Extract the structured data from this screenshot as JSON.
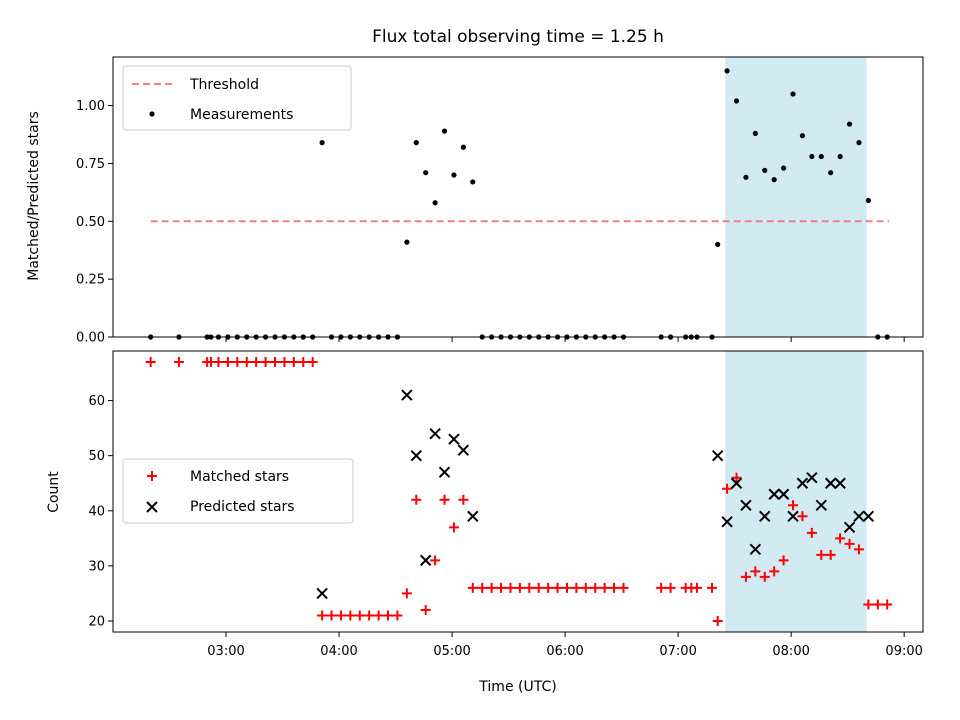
{
  "chart_data": [
    {
      "type": "scatter",
      "title": "Flux total observing time = 1.25 h",
      "xlabel": "",
      "ylabel": "Matched/Predicted stars",
      "xlim": [
        "02:00",
        "09:10"
      ],
      "ylim": [
        0.0,
        1.21
      ],
      "yticks": [
        0.0,
        0.25,
        0.5,
        0.75,
        1.0
      ],
      "ytick_labels": [
        "0.00",
        "0.25",
        "0.50",
        "0.75",
        "1.00"
      ],
      "highlight_band": {
        "x_start": "07:25",
        "x_end": "08:40",
        "color": "#add8e6"
      },
      "threshold": {
        "name": "Threshold",
        "y": 0.5,
        "x_start": "02:20",
        "x_end": "08:52",
        "color": "#f08080",
        "style": "dashed"
      },
      "legend": {
        "position": "upper-left",
        "entries": [
          "Threshold",
          "Measurements"
        ]
      },
      "series": [
        {
          "name": "Measurements",
          "color": "#000000",
          "marker": "dot",
          "points": [
            [
              "02:20",
              0
            ],
            [
              "02:35",
              0
            ],
            [
              "02:50",
              0
            ],
            [
              "02:52",
              0
            ],
            [
              "02:56",
              0
            ],
            [
              "03:01",
              0
            ],
            [
              "03:06",
              0
            ],
            [
              "03:11",
              0
            ],
            [
              "03:16",
              0
            ],
            [
              "03:21",
              0
            ],
            [
              "03:26",
              0
            ],
            [
              "03:31",
              0
            ],
            [
              "03:36",
              0
            ],
            [
              "03:41",
              0
            ],
            [
              "03:46",
              0
            ],
            [
              "03:51",
              0.84
            ],
            [
              "03:56",
              0
            ],
            [
              "04:01",
              0
            ],
            [
              "04:06",
              0
            ],
            [
              "04:11",
              0
            ],
            [
              "04:16",
              0
            ],
            [
              "04:21",
              0
            ],
            [
              "04:26",
              0
            ],
            [
              "04:31",
              0
            ],
            [
              "04:36",
              0.41
            ],
            [
              "04:41",
              0.84
            ],
            [
              "04:46",
              0.71
            ],
            [
              "04:51",
              0.58
            ],
            [
              "04:56",
              0.89
            ],
            [
              "05:01",
              0.7
            ],
            [
              "05:06",
              0.82
            ],
            [
              "05:11",
              0.67
            ],
            [
              "05:16",
              0
            ],
            [
              "05:21",
              0
            ],
            [
              "05:26",
              0
            ],
            [
              "05:31",
              0
            ],
            [
              "05:36",
              0
            ],
            [
              "05:41",
              0
            ],
            [
              "05:46",
              0
            ],
            [
              "05:51",
              0
            ],
            [
              "05:56",
              0
            ],
            [
              "06:01",
              0
            ],
            [
              "06:06",
              0
            ],
            [
              "06:11",
              0
            ],
            [
              "06:16",
              0
            ],
            [
              "06:21",
              0
            ],
            [
              "06:26",
              0
            ],
            [
              "06:31",
              0
            ],
            [
              "06:51",
              0
            ],
            [
              "06:56",
              0
            ],
            [
              "07:04",
              0
            ],
            [
              "07:07",
              0
            ],
            [
              "07:10",
              0
            ],
            [
              "07:18",
              0
            ],
            [
              "07:21",
              0.4
            ],
            [
              "07:26",
              1.15
            ],
            [
              "07:31",
              1.02
            ],
            [
              "07:36",
              0.69
            ],
            [
              "07:41",
              0.88
            ],
            [
              "07:46",
              0.72
            ],
            [
              "07:51",
              0.68
            ],
            [
              "07:56",
              0.73
            ],
            [
              "08:01",
              1.05
            ],
            [
              "08:06",
              0.87
            ],
            [
              "08:11",
              0.78
            ],
            [
              "08:16",
              0.78
            ],
            [
              "08:21",
              0.71
            ],
            [
              "08:26",
              0.78
            ],
            [
              "08:31",
              0.92
            ],
            [
              "08:36",
              0.84
            ],
            [
              "08:41",
              0.59
            ],
            [
              "08:46",
              0
            ],
            [
              "08:51",
              0
            ]
          ]
        }
      ]
    },
    {
      "type": "scatter",
      "title": "",
      "xlabel": "Time (UTC)",
      "ylabel": "Count",
      "xlim": [
        "02:00",
        "09:10"
      ],
      "ylim": [
        18,
        69
      ],
      "yticks": [
        20,
        30,
        40,
        50,
        60
      ],
      "xticks": [
        "03:00",
        "04:00",
        "05:00",
        "06:00",
        "07:00",
        "08:00",
        "09:00"
      ],
      "highlight_band": {
        "x_start": "07:25",
        "x_end": "08:40",
        "color": "#add8e6"
      },
      "legend": {
        "position": "center-left",
        "entries": [
          "Matched stars",
          "Predicted stars"
        ]
      },
      "series": [
        {
          "name": "Matched stars",
          "color": "#ff0000",
          "marker": "plus",
          "points": [
            [
              "02:20",
              67
            ],
            [
              "02:35",
              67
            ],
            [
              "02:50",
              67
            ],
            [
              "02:52",
              67
            ],
            [
              "02:56",
              67
            ],
            [
              "03:01",
              67
            ],
            [
              "03:06",
              67
            ],
            [
              "03:11",
              67
            ],
            [
              "03:16",
              67
            ],
            [
              "03:21",
              67
            ],
            [
              "03:26",
              67
            ],
            [
              "03:31",
              67
            ],
            [
              "03:36",
              67
            ],
            [
              "03:41",
              67
            ],
            [
              "03:46",
              67
            ],
            [
              "03:51",
              21
            ],
            [
              "03:56",
              21
            ],
            [
              "04:01",
              21
            ],
            [
              "04:06",
              21
            ],
            [
              "04:11",
              21
            ],
            [
              "04:16",
              21
            ],
            [
              "04:21",
              21
            ],
            [
              "04:26",
              21
            ],
            [
              "04:31",
              21
            ],
            [
              "04:36",
              25
            ],
            [
              "04:41",
              42
            ],
            [
              "04:46",
              22
            ],
            [
              "04:51",
              31
            ],
            [
              "04:56",
              42
            ],
            [
              "05:01",
              37
            ],
            [
              "05:06",
              42
            ],
            [
              "05:11",
              26
            ],
            [
              "05:16",
              26
            ],
            [
              "05:21",
              26
            ],
            [
              "05:26",
              26
            ],
            [
              "05:31",
              26
            ],
            [
              "05:36",
              26
            ],
            [
              "05:41",
              26
            ],
            [
              "05:46",
              26
            ],
            [
              "05:51",
              26
            ],
            [
              "05:56",
              26
            ],
            [
              "06:01",
              26
            ],
            [
              "06:06",
              26
            ],
            [
              "06:11",
              26
            ],
            [
              "06:16",
              26
            ],
            [
              "06:21",
              26
            ],
            [
              "06:26",
              26
            ],
            [
              "06:31",
              26
            ],
            [
              "06:51",
              26
            ],
            [
              "06:56",
              26
            ],
            [
              "07:04",
              26
            ],
            [
              "07:07",
              26
            ],
            [
              "07:10",
              26
            ],
            [
              "07:18",
              26
            ],
            [
              "07:21",
              20
            ],
            [
              "07:26",
              44
            ],
            [
              "07:31",
              46
            ],
            [
              "07:36",
              28
            ],
            [
              "07:41",
              29
            ],
            [
              "07:46",
              28
            ],
            [
              "07:51",
              29
            ],
            [
              "07:56",
              31
            ],
            [
              "08:01",
              41
            ],
            [
              "08:06",
              39
            ],
            [
              "08:11",
              36
            ],
            [
              "08:16",
              32
            ],
            [
              "08:21",
              32
            ],
            [
              "08:26",
              35
            ],
            [
              "08:31",
              34
            ],
            [
              "08:36",
              33
            ],
            [
              "08:41",
              23
            ],
            [
              "08:46",
              23
            ],
            [
              "08:51",
              23
            ]
          ]
        },
        {
          "name": "Predicted stars",
          "color": "#000000",
          "marker": "x",
          "points": [
            [
              "03:51",
              25
            ],
            [
              "04:36",
              61
            ],
            [
              "04:41",
              50
            ],
            [
              "04:46",
              31
            ],
            [
              "04:51",
              54
            ],
            [
              "04:56",
              47
            ],
            [
              "05:01",
              53
            ],
            [
              "05:06",
              51
            ],
            [
              "05:11",
              39
            ],
            [
              "07:21",
              50
            ],
            [
              "07:26",
              38
            ],
            [
              "07:31",
              45
            ],
            [
              "07:36",
              41
            ],
            [
              "07:41",
              33
            ],
            [
              "07:46",
              39
            ],
            [
              "07:51",
              43
            ],
            [
              "07:56",
              43
            ],
            [
              "08:01",
              39
            ],
            [
              "08:06",
              45
            ],
            [
              "08:11",
              46
            ],
            [
              "08:16",
              41
            ],
            [
              "08:21",
              45
            ],
            [
              "08:26",
              45
            ],
            [
              "08:31",
              37
            ],
            [
              "08:36",
              39
            ],
            [
              "08:41",
              39
            ]
          ]
        }
      ]
    }
  ]
}
